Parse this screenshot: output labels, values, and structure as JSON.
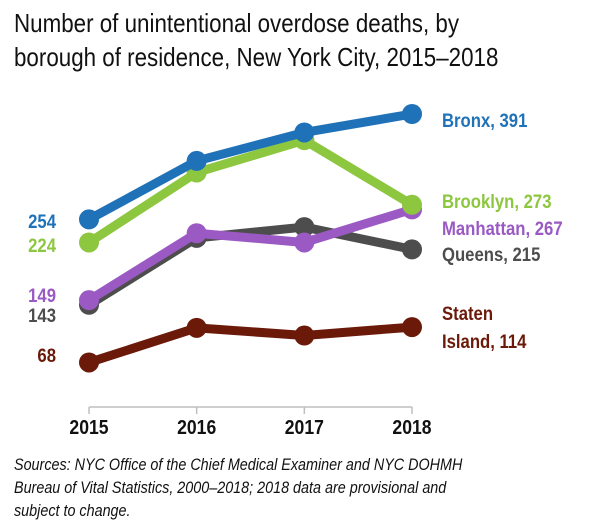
{
  "title_lines": [
    "Number of unintentional overdose deaths, by",
    "borough of residence, New York City, 2015–2018"
  ],
  "source_lines": [
    "Sources: NYC Office of the Chief Medical Examiner and NYC DOHMH",
    "Bureau of Vital Statistics, 2000–2018; 2018 data are provisional and",
    "subject to change."
  ],
  "chart_data": {
    "type": "line",
    "title": "Number of unintentional overdose deaths, by borough of residence, New York City, 2015–2018",
    "xlabel": "",
    "ylabel": "",
    "categories": [
      "2015",
      "2016",
      "2017",
      "2018"
    ],
    "ylim": [
      40,
      430
    ],
    "grid": false,
    "legend": "direct labels at line ends",
    "series": [
      {
        "name": "Bronx",
        "values": [
          254,
          330,
          367,
          391
        ],
        "color": "#1f72b8",
        "start_label": "254",
        "end_label": "Bronx, 391"
      },
      {
        "name": "Brooklyn",
        "values": [
          224,
          315,
          357,
          273
        ],
        "color": "#8dc63f",
        "start_label": "224",
        "end_label": "Brooklyn, 273"
      },
      {
        "name": "Manhattan",
        "values": [
          149,
          236,
          224,
          267
        ],
        "color": "#9b59c4",
        "start_label": "149",
        "end_label": "Manhattan, 267"
      },
      {
        "name": "Queens",
        "values": [
          143,
          230,
          244,
          215
        ],
        "color": "#4d4d4d",
        "start_label": "143",
        "end_label": "Queens, 215"
      },
      {
        "name": "Staten Island",
        "values": [
          68,
          113,
          103,
          114
        ],
        "color": "#6b1a0a",
        "start_label": "68",
        "end_label": "Staten Island, 114",
        "end_label_lines": [
          "Staten",
          "Island, 114"
        ]
      }
    ]
  }
}
